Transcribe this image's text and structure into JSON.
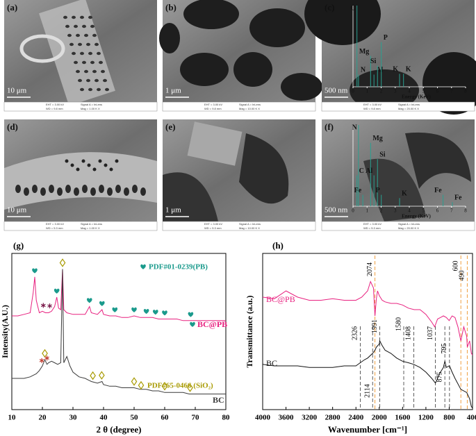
{
  "sem_panels": [
    {
      "label": "(a)",
      "scale": "10 μm",
      "info": [
        "EHT = 3.00 kV",
        "WD = 9.8 mm",
        "Signal A = InLens",
        "Mag = 1.00 K X"
      ]
    },
    {
      "label": "(b)",
      "scale": "1 μm",
      "info": [
        "EHT = 3.00 kV",
        "WD = 9.8 mm",
        "Signal A = InLens",
        "Mag = 10.00 K X"
      ]
    },
    {
      "label": "(c)",
      "scale": "500 nm",
      "info": [
        "EHT = 3.00 kV",
        "WD = 9.8 mm",
        "Signal A = InLens",
        "Mag = 20.00 K X"
      ],
      "eds": {
        "xlabel": "Energy (KeV)",
        "xlim": [
          0,
          8
        ],
        "xticks": [
          0,
          1,
          2,
          3,
          4,
          5,
          6,
          7,
          8
        ],
        "ylim": [
          0,
          100
        ],
        "peaks": [
          {
            "element": "C",
            "energy": 0.28,
            "height": 100
          },
          {
            "element": "N",
            "energy": 0.39,
            "height": 15
          },
          {
            "element": "Mg",
            "energy": 1.25,
            "height": 38
          },
          {
            "element": "Al",
            "energy": 1.49,
            "height": 15
          },
          {
            "element": "Si",
            "energy": 1.74,
            "height": 26
          },
          {
            "element": "P",
            "energy": 2.01,
            "height": 55
          },
          {
            "element": "K",
            "energy": 3.31,
            "height": 16
          },
          {
            "element": "K",
            "energy": 3.59,
            "height": 16
          }
        ]
      }
    },
    {
      "label": "(d)",
      "scale": "10 μm",
      "info": [
        "EHT = 3.00 kV",
        "WD = 5.3 mm",
        "Signal A = InLens",
        "Mag = 1.00 K X"
      ]
    },
    {
      "label": "(e)",
      "scale": "1 μm",
      "info": [
        "EHT = 3.00 kV",
        "WD = 5.3 mm",
        "Signal A = InLens",
        "Mag = 10.00 K X"
      ]
    },
    {
      "label": "(f)",
      "scale": "500 nm",
      "info": [
        "EHT = 3.00 kV",
        "WD = 5.3 mm",
        "Signal A = InLens",
        "Mag = 20.00 K X"
      ],
      "eds": {
        "xlabel": "Energy (KeV)",
        "xlim": [
          0,
          8
        ],
        "xticks": [
          0,
          1,
          2,
          3,
          4,
          5,
          6,
          7,
          8
        ],
        "ylim": [
          0,
          100
        ],
        "peaks": [
          {
            "element": "N",
            "energy": 0.39,
            "height": 100
          },
          {
            "element": "C",
            "energy": 0.28,
            "height": 38
          },
          {
            "element": "Fe",
            "energy": 0.7,
            "height": 14
          },
          {
            "element": "Mg",
            "energy": 1.25,
            "height": 78
          },
          {
            "element": "Al",
            "energy": 1.49,
            "height": 38
          },
          {
            "element": "Si",
            "energy": 1.74,
            "height": 58
          },
          {
            "element": "P",
            "energy": 2.01,
            "height": 14
          },
          {
            "element": "K",
            "energy": 3.31,
            "height": 10
          },
          {
            "element": "Fe",
            "energy": 6.4,
            "height": 14
          },
          {
            "element": "Fe",
            "energy": 7.06,
            "height": 5
          }
        ]
      }
    }
  ],
  "chart_data": [
    {
      "type": "line",
      "panel": "(g)",
      "xlabel": "2 θ (degree)",
      "ylabel": "Intensity(A.U.)",
      "xlim": [
        10,
        80
      ],
      "xticks": [
        10,
        20,
        30,
        40,
        50,
        60,
        70,
        80
      ],
      "ylim": [
        0,
        100
      ],
      "ref_pb": "PDF#01-0239(PB)",
      "ref_pb_color": "#1a9a8c",
      "ref_sio2": "PDF#65-0466 (SiO₂)",
      "ref_sio2_color": "#a89a00",
      "series": [
        {
          "name": "BC@PB",
          "color": "#e8207f",
          "x": [
            10,
            12,
            14,
            16,
            17,
            17.5,
            18,
            19,
            20,
            21,
            22,
            23,
            24,
            24.7,
            25.3,
            26,
            26.6,
            27,
            28,
            30,
            32,
            34,
            35.4,
            36,
            38,
            39.5,
            40,
            42,
            44,
            46,
            48,
            50,
            52,
            54,
            56,
            58,
            60,
            62,
            64,
            66,
            68,
            70,
            72,
            74,
            76,
            78,
            80
          ],
          "values": [
            60,
            60,
            61,
            62,
            75,
            85,
            70,
            62,
            63,
            62,
            62,
            63,
            66,
            72,
            65,
            64,
            90,
            64,
            62,
            61,
            61,
            61,
            66,
            62,
            61,
            64,
            61,
            60,
            60,
            59,
            59,
            60,
            59,
            59,
            59,
            58,
            58,
            58,
            58,
            57,
            57,
            57,
            57,
            57,
            57,
            57,
            57
          ],
          "markers": [
            {
              "symbol": "heart",
              "color": "#1a9a8c",
              "x": [
                17.5,
                24.7,
                35.4,
                39.5,
                43.7,
                50,
                54,
                57,
                60,
                68.5
              ]
            },
            {
              "symbol": "star",
              "color": "#7a1a4a",
              "x": [
                20.3,
                22.4
              ]
            }
          ]
        },
        {
          "name": "BC",
          "color": "#3a3a3a",
          "x": [
            10,
            12,
            14,
            16,
            18,
            19,
            20,
            20.8,
            21.5,
            22,
            23,
            24,
            25,
            26,
            26.6,
            27,
            27.5,
            28,
            29,
            30,
            32,
            34,
            36,
            38,
            39.5,
            40,
            42,
            44,
            46,
            48,
            50,
            52,
            54,
            56,
            58,
            60,
            62,
            64,
            66,
            68,
            70,
            72,
            74,
            76,
            78,
            80
          ],
          "values": [
            20,
            20,
            20,
            21,
            23,
            25,
            28,
            32,
            29,
            30,
            31,
            30,
            29,
            30,
            90,
            30,
            32,
            34,
            28,
            24,
            21,
            20,
            18,
            17,
            18,
            16,
            15,
            15,
            14,
            14,
            14,
            13,
            13,
            12,
            12,
            11,
            11,
            11,
            11,
            10,
            10,
            10,
            10,
            10,
            10,
            10
          ],
          "markers": [
            {
              "symbol": "diamond",
              "color": "#a89a00",
              "x": [
                20.8,
                26.6,
                36.5,
                39.4,
                50,
                60,
                68.3
              ]
            },
            {
              "symbol": "star",
              "color": "#c0392b",
              "x": [
                19.8,
                21.5
              ]
            }
          ]
        }
      ]
    },
    {
      "type": "line",
      "panel": "(h)",
      "xlabel": "Wavenumber [cm⁻¹]",
      "ylabel": "Transmittance (a.u.)",
      "xlim": [
        4000,
        400
      ],
      "xticks": [
        4000,
        3600,
        3200,
        2800,
        2400,
        2000,
        1600,
        1200,
        800,
        400
      ],
      "ylim": [
        0,
        100
      ],
      "highlight_peaks": [
        2074,
        600,
        490
      ],
      "highlight_color": "#f0a040",
      "peaks": [
        2326,
        1991,
        1580,
        1408,
        1037,
        795,
        2114,
        875
      ],
      "peak_color": "#333333",
      "series": [
        {
          "name": "BC@PB",
          "color": "#e8207f",
          "x": [
            4000,
            3800,
            3600,
            3400,
            3200,
            3000,
            2800,
            2600,
            2400,
            2300,
            2200,
            2150,
            2100,
            2074,
            2050,
            2030,
            2000,
            1950,
            1900,
            1800,
            1700,
            1600,
            1500,
            1400,
            1300,
            1200,
            1100,
            1050,
            1000,
            950,
            900,
            850,
            800,
            750,
            700,
            650,
            600,
            550,
            500,
            490,
            450,
            420,
            400
          ],
          "values": [
            72,
            71,
            76,
            72,
            70,
            70,
            71,
            70,
            70,
            72,
            76,
            82,
            78,
            60,
            71,
            76,
            73,
            70,
            69,
            68,
            68,
            67,
            65,
            64,
            64,
            61,
            56,
            53,
            58,
            59,
            60,
            59,
            57,
            60,
            59,
            53,
            44,
            53,
            47,
            40,
            44,
            36,
            35
          ]
        },
        {
          "name": "BC",
          "color": "#111111",
          "x": [
            4000,
            3800,
            3600,
            3400,
            3200,
            3000,
            2800,
            2600,
            2400,
            2326,
            2250,
            2200,
            2114,
            2074,
            2050,
            2000,
            1991,
            1950,
            1900,
            1800,
            1700,
            1600,
            1500,
            1408,
            1300,
            1200,
            1100,
            1037,
            1000,
            950,
            900,
            875,
            850,
            800,
            795,
            750,
            700,
            600,
            500,
            450,
            420,
            400
          ],
          "values": [
            29,
            28,
            28,
            28,
            27,
            27,
            27,
            28,
            28,
            30,
            32,
            33,
            36,
            38,
            40,
            42,
            44,
            41,
            38,
            36,
            33,
            31,
            30,
            29,
            27,
            24,
            20,
            17,
            20,
            24,
            27,
            31,
            27,
            28,
            28,
            24,
            20,
            13,
            11,
            7,
            2,
            1
          ]
        }
      ]
    }
  ]
}
